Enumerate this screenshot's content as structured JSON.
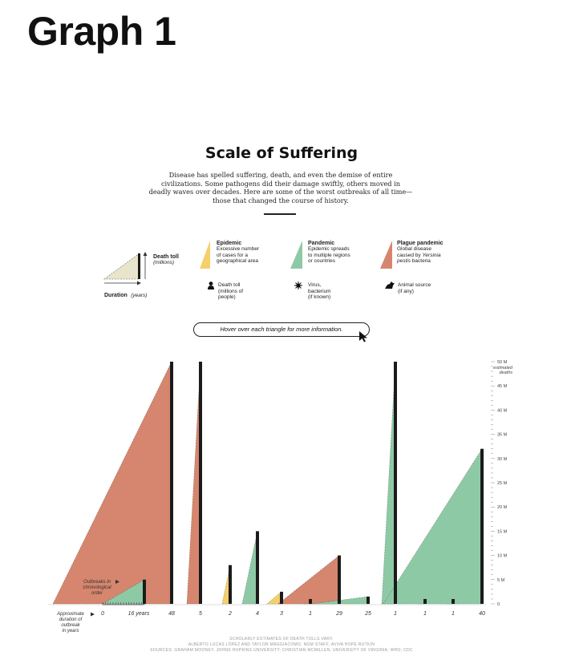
{
  "page": {
    "heading": "Graph 1"
  },
  "header": {
    "title": "Scale of Suffering",
    "intro_lines": [
      "Disease has spelled suffering, death, and even the demise of entire",
      "civilizations. Some pathogens did their damage swiftly, others moved in",
      "deadly waves over decades. Here are some of the worst outbreaks of all time—",
      "those that changed the course of history."
    ]
  },
  "legend": {
    "death_toll": "Death toll",
    "death_toll_unit": "(millions)",
    "duration": "Duration",
    "duration_unit": "(years)",
    "epidemic_title": "Epidemic",
    "epidemic_desc": [
      "Excessive number",
      "of cases for a",
      "geographical area"
    ],
    "pandemic_title": "Pandemic",
    "pandemic_desc": [
      "Epidemic spreads",
      "to multiple regions",
      "or countries"
    ],
    "plague_title": "Plague pandemic",
    "plague_desc": [
      "Global disease",
      "caused by ",
      "Yersinia",
      "pestis",
      " bacteria"
    ],
    "people_icon_label": [
      "Death toll",
      "(millions of",
      "people)"
    ],
    "virus_icon_label": [
      "Virus,",
      "bacterium",
      "(if known)"
    ],
    "animal_icon_label": [
      "Animal source",
      "(if any)"
    ],
    "colors": {
      "epidemic": "#f6cf6b",
      "pandemic": "#8ec9a5",
      "plague": "#d6866e",
      "bar": "#1b1b1b"
    }
  },
  "hover_hint": "Hover over each triangle for more information.",
  "annotations": {
    "outbreaks_order": [
      "Outbreaks in",
      "chronological",
      "order"
    ],
    "approx_duration": [
      "Approximate",
      "duration of",
      "outbreak",
      "in years"
    ],
    "years_unit": "years"
  },
  "chart_data": {
    "type": "area",
    "title": "Scale of Suffering",
    "ylabel": "estimated deaths",
    "y_unit": "M",
    "ylim": [
      0,
      50
    ],
    "y_major_ticks": [
      "5 M",
      "10 M",
      "15 M",
      "20 M",
      "25 M",
      "30 M",
      "35 M",
      "40 M",
      "45 M",
      "50 M"
    ],
    "y_top_label": "50 M",
    "y_zero_label": "0",
    "outbreaks": [
      {
        "category": "plague",
        "duration_years": 48,
        "deaths_millions": 50,
        "label": "48"
      },
      {
        "category": "pandemic",
        "duration_years": 16,
        "deaths_millions": 5,
        "label": "16"
      },
      {
        "category": "plague",
        "duration_years": 5,
        "deaths_millions": 50,
        "label": "5"
      },
      {
        "category": "epidemic",
        "duration_years": 2,
        "deaths_millions": 8,
        "label": "2"
      },
      {
        "category": "pandemic",
        "duration_years": 4,
        "deaths_millions": 15,
        "label": "4"
      },
      {
        "category": "epidemic",
        "duration_years": 3,
        "deaths_millions": 2.5,
        "label": "3"
      },
      {
        "category": "pandemic",
        "duration_years": 1,
        "deaths_millions": 1,
        "label": "1"
      },
      {
        "category": "plague",
        "duration_years": 29,
        "deaths_millions": 10,
        "label": "29"
      },
      {
        "category": "pandemic",
        "duration_years": 25,
        "deaths_millions": 1.5,
        "label": "25"
      },
      {
        "category": "pandemic",
        "duration_years": 1,
        "deaths_millions": 50,
        "label": "1"
      },
      {
        "category": "pandemic",
        "duration_years": 1,
        "deaths_millions": 1,
        "label": "1"
      },
      {
        "category": "pandemic",
        "duration_years": 1,
        "deaths_millions": 1,
        "label": "1"
      },
      {
        "category": "pandemic",
        "duration_years": 40,
        "deaths_millions": 32,
        "label": "40"
      }
    ]
  },
  "credits": [
    "SCHOLARLY ESTIMATES OF DEATH TOLLS VARY.",
    "ALBERTO LUCAS LÓPEZ AND TAYLOR MAGGIACOMO, NGM STAFF; AVIVA HOPE RUTKIN",
    "SOURCES: GRAHAM MOONEY, JOHNS HOPKINS UNIVERSITY; CHRISTIAN MCMILLEN, UNIVERSITY OF VIRGINIA; WHO; CDC"
  ]
}
